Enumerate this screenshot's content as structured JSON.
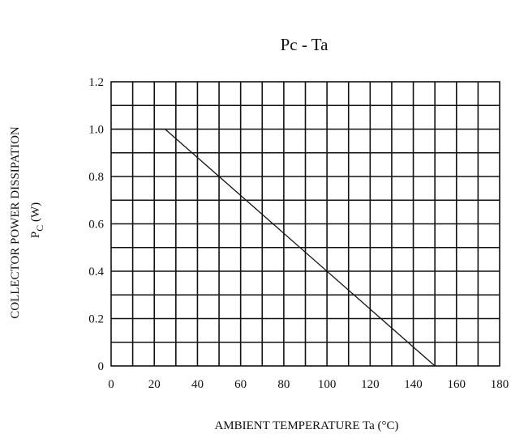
{
  "chart_data": {
    "type": "line",
    "title": "Pc  - Ta",
    "xlabel": "AMBIENT TEMPERATURE Ta  (°C)",
    "ylabel_line1": "COLLECTOR POWER DISSIPATION",
    "ylabel_line2_main": "P",
    "ylabel_line2_sub": "C",
    "ylabel_line2_unit": " (W)",
    "xlim": [
      0,
      180
    ],
    "ylim": [
      0,
      1.2
    ],
    "x_ticks": [
      "0",
      "20",
      "40",
      "60",
      "80",
      "100",
      "120",
      "140",
      "160",
      "180"
    ],
    "y_ticks": [
      "0",
      "0.2",
      "0.4",
      "0.6",
      "0.8",
      "1.0",
      "1.2"
    ],
    "grid": true,
    "x_grid_step": 10,
    "y_grid_step": 0.1,
    "series": [
      {
        "x": [
          0,
          25,
          150
        ],
        "y": [
          1.0,
          1.0,
          0
        ]
      }
    ]
  }
}
